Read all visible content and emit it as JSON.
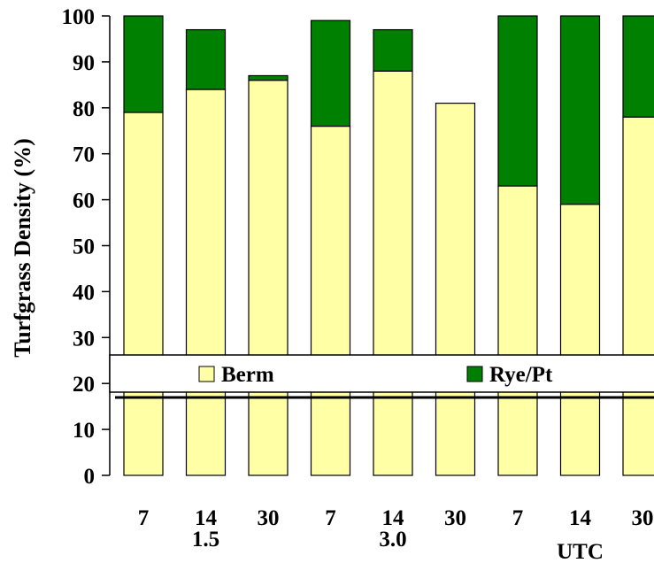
{
  "chart_data": {
    "type": "bar",
    "stacked": true,
    "title": "",
    "xlabel": "",
    "ylabel": "Turfgrass Density (%)",
    "ylim": [
      0,
      100
    ],
    "yticks": [
      "0",
      "10",
      "20",
      "30",
      "40",
      "50",
      "60",
      "70",
      "80",
      "90",
      "100"
    ],
    "categories": [
      "7",
      "14",
      "30",
      "7",
      "14",
      "30",
      "7",
      "14",
      "30"
    ],
    "groups": [
      {
        "label": "1.5",
        "categories": [
          0,
          1,
          2
        ]
      },
      {
        "label": "3.0",
        "categories": [
          3,
          4,
          5
        ]
      },
      {
        "label": "UTC",
        "categories": [
          6,
          7,
          8
        ]
      }
    ],
    "series": [
      {
        "name": "Berm",
        "color": "#ffffa6",
        "values": [
          79,
          84,
          86,
          76,
          88,
          81,
          63,
          59,
          78
        ]
      },
      {
        "name": "Rye/Pt",
        "color": "#008000",
        "values": [
          21,
          13,
          1,
          23,
          9,
          0,
          37,
          41,
          22
        ]
      }
    ],
    "legend": {
      "placement": "center, overlapping the 20–27 band",
      "items": [
        "Berm",
        "Rye/Pt"
      ]
    },
    "grid": false
  }
}
